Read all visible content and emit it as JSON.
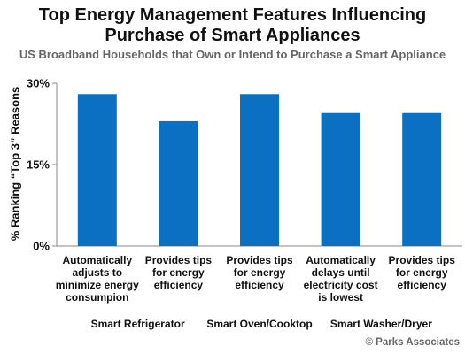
{
  "chart_data": {
    "type": "bar",
    "title": "Top Energy Management Features Influencing Purchase of Smart Appliances",
    "subtitle": "US Broadband Households that Own or Intend to Purchase a Smart Appliance",
    "ylabel": "% Ranking “Top 3” Reasons",
    "xlabel": "",
    "ylim": [
      0,
      30
    ],
    "yticks": [
      0,
      15,
      30
    ],
    "ytick_labels": [
      "0%",
      "15%",
      "30%"
    ],
    "grid": false,
    "bar_color": "#0b6fc2",
    "categories": [
      "Automatically adjusts to minimize energy consumpion",
      "Provides tips for energy efficiency",
      "Provides tips for energy efficiency",
      "Automatically delays until electricity cost is lowest",
      "Provides tips for energy efficiency"
    ],
    "category_lines": [
      [
        "Automatically",
        "adjusts to",
        "minimize energy",
        "consumpion"
      ],
      [
        "Provides tips",
        "for energy",
        "efficiency"
      ],
      [
        "Provides tips",
        "for energy",
        "efficiency"
      ],
      [
        "Automatically",
        "delays until",
        "electricity cost",
        "is lowest"
      ],
      [
        "Provides tips",
        "for energy",
        "efficiency"
      ]
    ],
    "values": [
      28,
      23,
      28,
      24.5,
      24.5
    ],
    "groups": [
      {
        "name": "Smart Refrigerator",
        "span": [
          0,
          1
        ]
      },
      {
        "name": "Smart Oven/Cooktop",
        "span": [
          2,
          2
        ]
      },
      {
        "name": "Smart Washer/Dryer",
        "span": [
          3,
          4
        ]
      }
    ]
  },
  "source": "© Parks Associates"
}
